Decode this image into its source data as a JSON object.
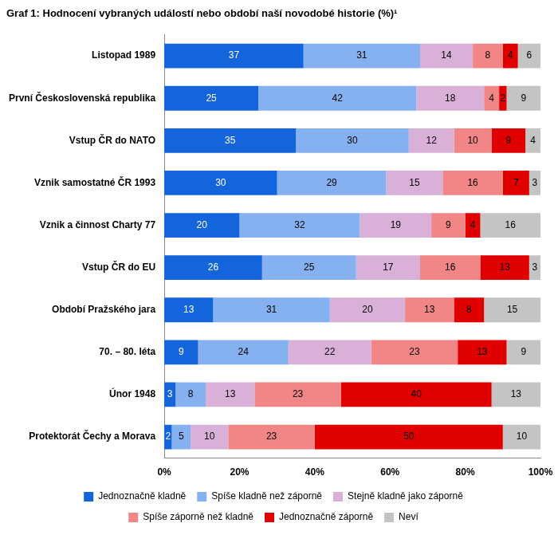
{
  "chart_data": {
    "type": "bar",
    "orientation": "horizontal",
    "stacked": true,
    "data_labels": true,
    "grid": false,
    "legend": "bottom",
    "title": "Graf 1: Hodnocení vybraných událostí nebo období naší novodobé historie (%)¹",
    "categories": [
      "Listopad 1989",
      "První Československá republika",
      "Vstup ČR do NATO",
      "Vznik samostatné ČR 1993",
      "Vznik a činnost Charty 77",
      "Vstup ČR do EU",
      "Období Pražského jara",
      "70. – 80. léta",
      "Únor 1948",
      "Protektorát Čechy a Morava"
    ],
    "series": [
      {
        "name": "Jednoznačně kladně",
        "color": "#1464dc",
        "values": [
          37,
          25,
          35,
          30,
          20,
          26,
          13,
          9,
          3,
          2
        ]
      },
      {
        "name": "Spíše kladně než záporně",
        "color": "#86b1f0",
        "values": [
          31,
          42,
          30,
          29,
          32,
          25,
          31,
          24,
          8,
          5
        ]
      },
      {
        "name": "Stejně kladně jako záporně",
        "color": "#d8b0d8",
        "values": [
          14,
          18,
          12,
          15,
          19,
          17,
          20,
          22,
          13,
          10
        ]
      },
      {
        "name": "Spíše záporně než kladně",
        "color": "#f28686",
        "values": [
          8,
          4,
          10,
          16,
          9,
          16,
          13,
          23,
          23,
          23
        ]
      },
      {
        "name": "Jednoznačně záporně",
        "color": "#e00000",
        "values": [
          4,
          2,
          9,
          7,
          4,
          13,
          8,
          13,
          40,
          50
        ]
      },
      {
        "name": "Neví",
        "color": "#c4c4c4",
        "values": [
          6,
          9,
          4,
          3,
          16,
          3,
          15,
          9,
          13,
          10
        ]
      }
    ],
    "xlim": [
      0,
      100
    ],
    "xticks": [
      {
        "value": 0,
        "label": "0%"
      },
      {
        "value": 20,
        "label": "20%"
      },
      {
        "value": 40,
        "label": "40%"
      },
      {
        "value": 60,
        "label": "60%"
      },
      {
        "value": 80,
        "label": "80%"
      },
      {
        "value": 100,
        "label": "100%"
      }
    ]
  }
}
